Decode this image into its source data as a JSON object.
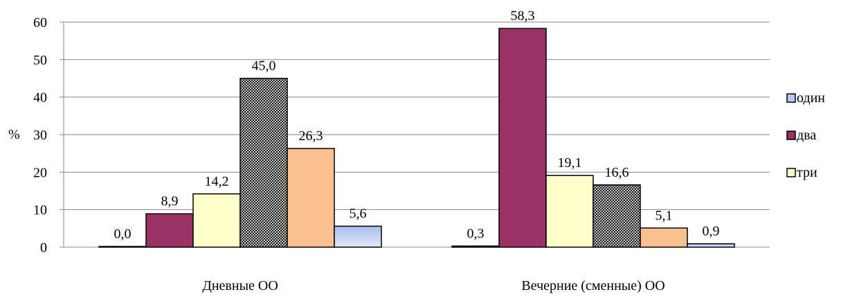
{
  "chart_data": {
    "type": "bar",
    "ylabel": "%",
    "ylim": [
      0,
      60
    ],
    "yticks": [
      0,
      10,
      20,
      30,
      40,
      50,
      60
    ],
    "grid": true,
    "legend_position": "right",
    "categories": [
      "Дневные ОО",
      "Вечерние (сменные) ОО"
    ],
    "series": [
      {
        "name": "один",
        "values": [
          0.0,
          0.3
        ],
        "labels": [
          "0,0",
          "0,3"
        ],
        "color": "#000000",
        "pattern": "solid"
      },
      {
        "name": "два",
        "values": [
          8.9,
          58.3
        ],
        "labels": [
          "8,9",
          "58,3"
        ],
        "color": "#993366",
        "pattern": "solid"
      },
      {
        "name": "три",
        "values": [
          14.2,
          19.1
        ],
        "labels": [
          "14,2",
          "19,1"
        ],
        "color": "#FFFFCC",
        "pattern": "solid"
      },
      {
        "values": [
          45.0,
          16.6
        ],
        "labels": [
          "45,0",
          "16,6"
        ],
        "color": "#FFFFFF",
        "pattern": "crosshatch"
      },
      {
        "values": [
          26.3,
          5.1
        ],
        "labels": [
          "26,3",
          "5,1"
        ],
        "color": "#FAC090",
        "pattern": "solid"
      },
      {
        "values": [
          5.6,
          0.9
        ],
        "labels": [
          "5,6",
          "0,9"
        ],
        "color": "#B7C7EE",
        "pattern": "gradient"
      }
    ],
    "legend_swatches": [
      "#B7C7EE",
      "#993366",
      "#FFFFCC"
    ]
  }
}
